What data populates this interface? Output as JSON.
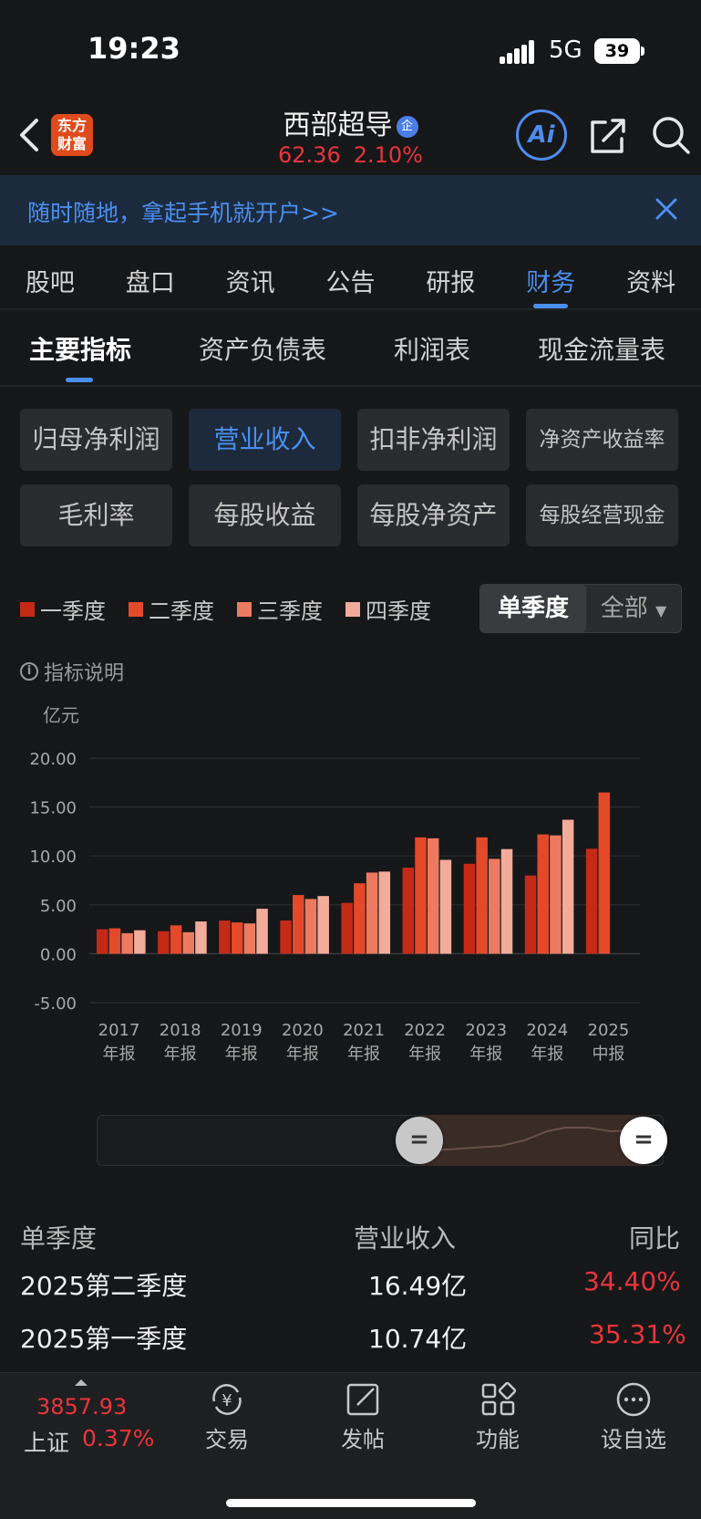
{
  "status_bar": {
    "time": "19:23",
    "network": "5G",
    "battery": "39"
  },
  "header": {
    "logo_line1": "东方",
    "logo_line2": "财富",
    "stock_name": "西部超导",
    "stock_badge": "企",
    "price": "62.36",
    "change_pct": "2.10%",
    "ai_label": "Ai"
  },
  "banner": {
    "text": "随时随地，拿起手机就开户>>"
  },
  "main_tabs": [
    {
      "label": "股吧"
    },
    {
      "label": "盘口"
    },
    {
      "label": "资讯"
    },
    {
      "label": "公告"
    },
    {
      "label": "研报"
    },
    {
      "label": "财务"
    },
    {
      "label": "资料"
    }
  ],
  "sub_tabs": [
    {
      "label": "主要指标"
    },
    {
      "label": "资产负债表"
    },
    {
      "label": "利润表"
    },
    {
      "label": "现金流量表"
    }
  ],
  "indicators": [
    {
      "label": "归母净利润"
    },
    {
      "label": "营业收入"
    },
    {
      "label": "扣非净利润"
    },
    {
      "label": "净资产收益率"
    },
    {
      "label": "毛利率"
    },
    {
      "label": "每股收益"
    },
    {
      "label": "每股净资产"
    },
    {
      "label": "每股经营现金"
    }
  ],
  "legend": [
    {
      "label": "一季度",
      "color": "#c42a16"
    },
    {
      "label": "二季度",
      "color": "#e4492a"
    },
    {
      "label": "三季度",
      "color": "#ec7a60"
    },
    {
      "label": "四季度",
      "color": "#f3ab9a"
    }
  ],
  "period_toggle": {
    "active": "单季度",
    "other": "全部"
  },
  "info_label": "指标说明",
  "chart_data": {
    "type": "bar",
    "unit": "亿元",
    "ylim": [
      -5,
      20
    ],
    "yticks": [
      "20.00",
      "15.00",
      "10.00",
      "5.00",
      "0.00",
      "-5.00"
    ],
    "categories": [
      [
        "2017",
        "年报"
      ],
      [
        "2018",
        "年报"
      ],
      [
        "2019",
        "年报"
      ],
      [
        "2020",
        "年报"
      ],
      [
        "2021",
        "年报"
      ],
      [
        "2022",
        "年报"
      ],
      [
        "2023",
        "年报"
      ],
      [
        "2024",
        "年报"
      ],
      [
        "2025",
        "中报"
      ]
    ],
    "series": [
      {
        "name": "一季度",
        "values": [
          2.5,
          2.3,
          3.4,
          3.4,
          5.2,
          8.8,
          9.2,
          8.0,
          10.74
        ]
      },
      {
        "name": "二季度",
        "values": [
          2.6,
          2.9,
          3.2,
          6.0,
          7.2,
          11.9,
          11.9,
          12.2,
          16.49
        ]
      },
      {
        "name": "三季度",
        "values": [
          2.1,
          2.2,
          3.1,
          5.6,
          8.3,
          11.8,
          9.7,
          12.1,
          null
        ]
      },
      {
        "name": "四季度",
        "values": [
          2.4,
          3.3,
          4.6,
          5.9,
          8.4,
          9.6,
          10.7,
          13.7,
          null
        ]
      }
    ],
    "grid": true
  },
  "table": {
    "headers": [
      "单季度",
      "营业收入",
      "同比"
    ],
    "rows": [
      {
        "period": "2025第二季度",
        "value": "16.49亿",
        "yoy": "34.40%"
      },
      {
        "period": "2025第一季度",
        "value": "10.74亿",
        "yoy": "35.31%"
      }
    ]
  },
  "bottom_nav": {
    "index_value": "3857.93",
    "index_name": "上证",
    "index_pct": "0.37%",
    "items": [
      {
        "label": "交易"
      },
      {
        "label": "发帖"
      },
      {
        "label": "功能"
      },
      {
        "label": "设自选"
      }
    ]
  }
}
